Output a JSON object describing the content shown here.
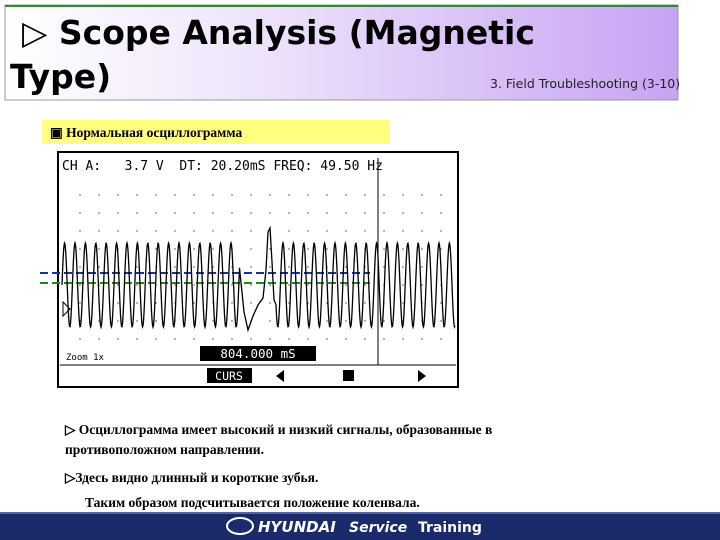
{
  "header": {
    "title": "▷ Scope Analysis (Magnetic",
    "title_line2": "Type)",
    "section": "3. Field Troubleshooting (3-10)"
  },
  "figure": {
    "caption": "▣ Нормальная осциллограмма",
    "scope": {
      "status": "CH A:   3.7 V  DT: 20.20mS FREQ: 49.50 Hz",
      "zoom": "Zoom 1x",
      "time": "804.000 mS",
      "menu": "CURS"
    }
  },
  "notes": [
    "▷ Осциллограмма имеет высокий и низкий сигналы, образованные в",
    "противоположном направлении.",
    "▷Здесь видно длинный и короткие зубья.",
    "Таким образом подсчитывается положение коленвала."
  ],
  "footer": {
    "brand": "HYUNDAI",
    "program": "Service",
    "tagline": "Training"
  }
}
